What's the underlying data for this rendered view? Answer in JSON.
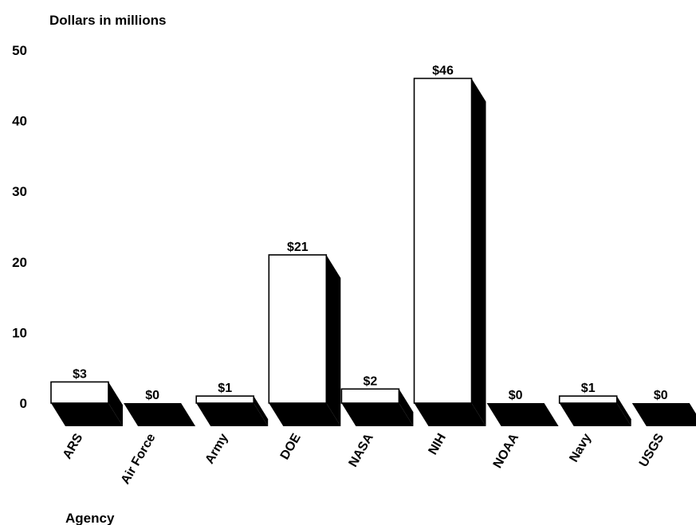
{
  "chart_data": {
    "type": "bar",
    "title": "",
    "ylabel": "Dollars in millions",
    "xlabel": "Agency",
    "categories": [
      "ARS",
      "Air Force",
      "Army",
      "DOE",
      "NASA",
      "NIH",
      "NOAA",
      "Navy",
      "USGS"
    ],
    "values": [
      3,
      0,
      1,
      21,
      2,
      46,
      0,
      1,
      0
    ],
    "value_labels": [
      "$3",
      "$0",
      "$1",
      "$21",
      "$2",
      "$46",
      "$0",
      "$1",
      "$0"
    ],
    "yticks": [
      "0",
      "10",
      "20",
      "30",
      "40",
      "50"
    ],
    "ylim": [
      0,
      50
    ],
    "grid": false,
    "legend": "none",
    "colors": {
      "bar_face": "#ffffff",
      "bar_shadow": "#000000",
      "text": "#000000"
    }
  }
}
